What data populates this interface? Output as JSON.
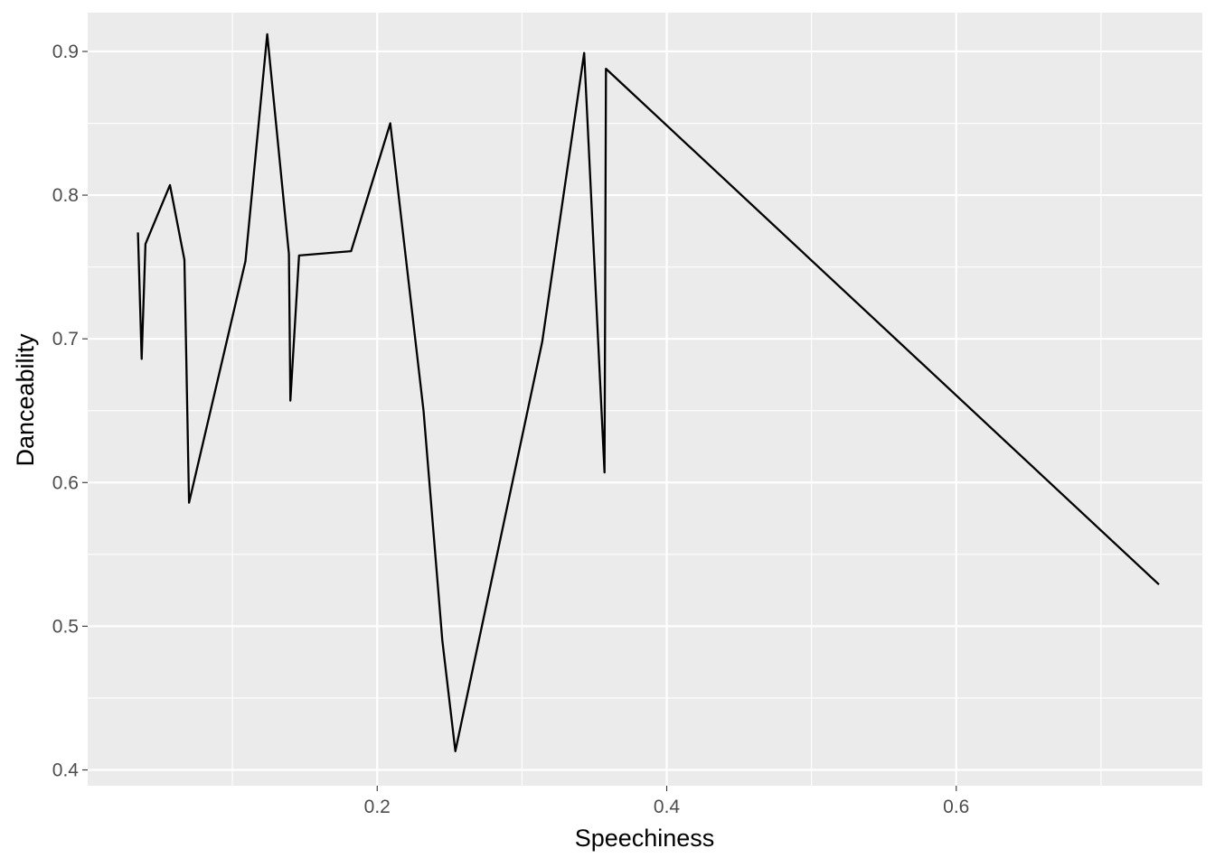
{
  "chart_data": {
    "type": "line",
    "title": "",
    "xlabel": "Speechiness",
    "ylabel": "Danceability",
    "xlim": [
      0.0,
      0.77
    ],
    "ylim": [
      0.389,
      0.927
    ],
    "x_ticks": [
      0.2,
      0.4,
      0.6
    ],
    "x_tick_labels": [
      "0.2",
      "0.4",
      "0.6"
    ],
    "x_minor_ticks": [
      0.1,
      0.3,
      0.5,
      0.7
    ],
    "y_ticks": [
      0.4,
      0.5,
      0.6,
      0.7,
      0.8,
      0.9
    ],
    "y_tick_labels": [
      "0.4",
      "0.5",
      "0.6",
      "0.7",
      "0.8",
      "0.9"
    ],
    "y_minor_ticks": [
      0.45,
      0.55,
      0.65,
      0.75,
      0.85
    ],
    "grid": true,
    "colors": {
      "panel": "#ebebeb",
      "grid": "#ffffff",
      "line": "#000000",
      "tick_text": "#4d4d4d",
      "title_text": "#000000"
    },
    "series": [
      {
        "x": [
          0.0347,
          0.0373,
          0.0399,
          0.0568,
          0.0668,
          0.07,
          0.109,
          0.124,
          0.139,
          0.14,
          0.146,
          0.182,
          0.209,
          0.232,
          0.245,
          0.254,
          0.314,
          0.343,
          0.357,
          0.358,
          0.74
        ],
        "y": [
          0.774,
          0.686,
          0.766,
          0.807,
          0.755,
          0.586,
          0.754,
          0.912,
          0.759,
          0.657,
          0.758,
          0.761,
          0.85,
          0.65,
          0.49,
          0.413,
          0.698,
          0.899,
          0.607,
          0.888,
          0.529
        ]
      }
    ]
  }
}
